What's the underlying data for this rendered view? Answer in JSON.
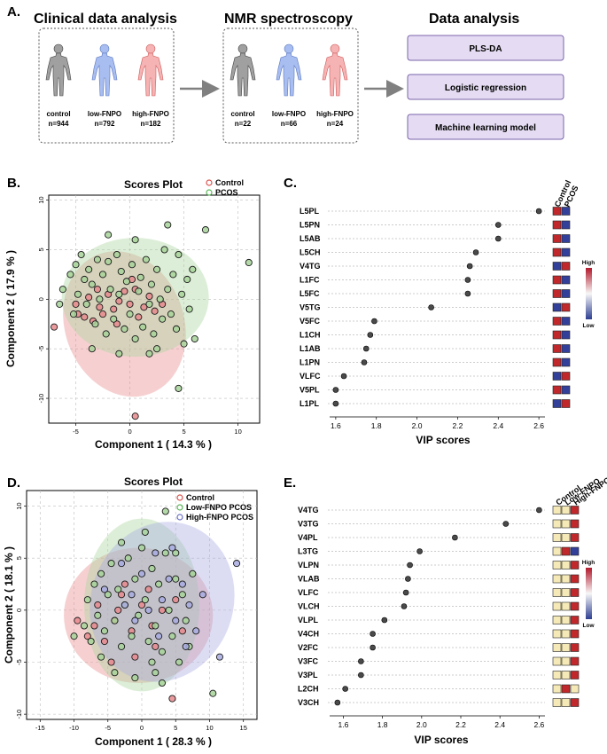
{
  "panel_a": {
    "letter": "A.",
    "clinical": {
      "title": "Clinical data analysis",
      "groups": [
        {
          "name": "control",
          "n": "n=944",
          "color": "#9a9a9a"
        },
        {
          "name": "low-FNPO",
          "n": "n=792",
          "color": "#8ea6e0"
        },
        {
          "name": "high-FNPO",
          "n": "n=182",
          "color": "#f2a2a2"
        }
      ]
    },
    "nmr": {
      "title": "NMR spectroscopy",
      "groups": [
        {
          "name": "control",
          "n": "n=22",
          "color": "#9a9a9a"
        },
        {
          "name": "low-FNPO",
          "n": "n=66",
          "color": "#8ea6e0"
        },
        {
          "name": "high-FNPO",
          "n": "n=24",
          "color": "#f2a2a2"
        }
      ]
    },
    "analysis": {
      "title": "Data analysis",
      "steps": [
        "PLS-DA",
        "Logistic regression",
        "Machine learning model"
      ],
      "box_color": "#e5dcf3",
      "border_color": "#7a63a8"
    }
  },
  "chart_data": [
    {
      "panel": "B.",
      "type": "scatter",
      "title": "Scores Plot",
      "xlabel": "Component 1 ( 14.3 % )",
      "ylabel": "Component 2 ( 17.9 % )",
      "xlim": [
        -7.5,
        12
      ],
      "ylim": [
        -12.5,
        10.5
      ],
      "xticks": [
        -5,
        0,
        5,
        10
      ],
      "yticks": [
        -10,
        -5,
        0,
        5,
        10
      ],
      "grid": true,
      "legend_position": "top-right",
      "series": [
        {
          "name": "Control",
          "color": "#e8898d",
          "marker": "#d9534f",
          "ellipse": {
            "cx": -0.5,
            "cy": -2.5,
            "rx": 5.5,
            "ry": 7.5,
            "angle": 20
          },
          "points": [
            [
              -7.0,
              -2.8
            ],
            [
              -5.0,
              -0.5
            ],
            [
              -4.8,
              -1.5
            ],
            [
              -4.2,
              -1.8
            ],
            [
              -3.8,
              0.2
            ],
            [
              -3.4,
              -2.2
            ],
            [
              -2.8,
              -0.8
            ],
            [
              -2.5,
              -1.5
            ],
            [
              -2.0,
              0.5
            ],
            [
              -1.5,
              -1.0
            ],
            [
              -1.0,
              -0.2
            ],
            [
              -0.5,
              0.8
            ],
            [
              0.0,
              -0.5
            ],
            [
              0.5,
              1.0
            ],
            [
              0.8,
              -1.8
            ],
            [
              1.3,
              -0.8
            ],
            [
              1.8,
              0.3
            ],
            [
              2.3,
              -1.2
            ],
            [
              -1.2,
              -2.5
            ],
            [
              0.2,
              2.0
            ],
            [
              -3.0,
              1.0
            ],
            [
              3.0,
              -0.5
            ],
            [
              0.5,
              -11.8
            ]
          ]
        },
        {
          "name": "PCOS",
          "color": "#a8d49a",
          "marker": "#5cb85c",
          "ellipse": {
            "cx": 0.5,
            "cy": 0.2,
            "rx": 6.8,
            "ry": 6.0,
            "angle": 0
          },
          "points": [
            [
              -6.5,
              -0.5
            ],
            [
              -6.2,
              1.0
            ],
            [
              -5.5,
              2.5
            ],
            [
              -5.2,
              -1.5
            ],
            [
              -5.0,
              3.5
            ],
            [
              -4.8,
              0.5
            ],
            [
              -4.5,
              4.5
            ],
            [
              -4.2,
              2.0
            ],
            [
              -4.0,
              -0.5
            ],
            [
              -3.8,
              3.0
            ],
            [
              -3.5,
              1.5
            ],
            [
              -3.2,
              -2.5
            ],
            [
              -3.0,
              4.0
            ],
            [
              -2.8,
              0.0
            ],
            [
              -2.5,
              2.5
            ],
            [
              -2.2,
              -3.5
            ],
            [
              -2.0,
              3.8
            ],
            [
              -1.8,
              1.0
            ],
            [
              -1.5,
              -2.0
            ],
            [
              -1.2,
              4.5
            ],
            [
              -1.0,
              0.5
            ],
            [
              -0.8,
              2.8
            ],
            [
              -0.5,
              -3.0
            ],
            [
              -0.3,
              1.8
            ],
            [
              0.0,
              -1.5
            ],
            [
              0.2,
              3.5
            ],
            [
              0.5,
              -4.0
            ],
            [
              0.8,
              0.8
            ],
            [
              1.0,
              2.2
            ],
            [
              1.2,
              -2.8
            ],
            [
              1.5,
              4.0
            ],
            [
              1.8,
              -0.5
            ],
            [
              2.0,
              1.5
            ],
            [
              2.2,
              -3.5
            ],
            [
              2.5,
              3.0
            ],
            [
              2.8,
              0.0
            ],
            [
              3.0,
              -2.0
            ],
            [
              3.2,
              5.0
            ],
            [
              3.5,
              1.0
            ],
            [
              3.8,
              -1.5
            ],
            [
              4.0,
              2.5
            ],
            [
              4.3,
              -3.0
            ],
            [
              4.5,
              4.5
            ],
            [
              4.8,
              0.5
            ],
            [
              5.0,
              -4.5
            ],
            [
              5.3,
              2.0
            ],
            [
              5.5,
              -1.0
            ],
            [
              5.8,
              3.0
            ],
            [
              6.0,
              -4.0
            ],
            [
              3.5,
              7.5
            ],
            [
              7.0,
              7.0
            ],
            [
              11.0,
              3.7
            ],
            [
              4.5,
              -9.0
            ],
            [
              -3.5,
              -5.0
            ],
            [
              -1.0,
              -5.5
            ],
            [
              2.5,
              -5.0
            ],
            [
              0.5,
              6.0
            ],
            [
              -2.0,
              6.5
            ],
            [
              1.8,
              -5.5
            ]
          ]
        }
      ]
    },
    {
      "panel": "C.",
      "type": "scatter",
      "xlabel": "VIP scores",
      "xlim": [
        1.57,
        2.63
      ],
      "xticks": [
        1.6,
        1.8,
        2.0,
        2.2,
        2.4,
        2.6
      ],
      "features": [
        "L5PL",
        "L5PN",
        "L5AB",
        "L5CH",
        "V4TG",
        "L1FC",
        "L5FC",
        "V5TG",
        "V5FC",
        "L1CH",
        "L1AB",
        "L1PN",
        "VLFC",
        "V5PL",
        "L1PL"
      ],
      "values": [
        2.6,
        2.4,
        2.4,
        2.29,
        2.26,
        2.25,
        2.25,
        2.07,
        1.79,
        1.77,
        1.75,
        1.74,
        1.64,
        1.6,
        1.6
      ],
      "heatmap": {
        "columns": [
          "Control",
          "PCOS"
        ],
        "levels": [
          [
            "high",
            "low"
          ],
          [
            "high",
            "low"
          ],
          [
            "high",
            "low"
          ],
          [
            "high",
            "low"
          ],
          [
            "low",
            "high"
          ],
          [
            "high",
            "low"
          ],
          [
            "high",
            "low"
          ],
          [
            "low",
            "high"
          ],
          [
            "high",
            "low"
          ],
          [
            "high",
            "low"
          ],
          [
            "high",
            "low"
          ],
          [
            "high",
            "low"
          ],
          [
            "low",
            "high"
          ],
          [
            "high",
            "low"
          ],
          [
            "low",
            "high"
          ]
        ],
        "colorbar": {
          "high": "High",
          "low": "Low",
          "high_color": "#b2182b",
          "mid_color": "#f7f7f7",
          "low_color": "#2c3e91"
        }
      }
    },
    {
      "panel": "D.",
      "type": "scatter",
      "title": "Scores Plot",
      "xlabel": "Component 1 ( 28.3 % )",
      "ylabel": "Component 2 ( 18.1 % )",
      "xlim": [
        -17,
        17
      ],
      "ylim": [
        -10.5,
        11.5
      ],
      "xticks": [
        -15,
        -10,
        -5,
        0,
        5,
        10,
        15
      ],
      "yticks": [
        -10,
        -5,
        0,
        5,
        10
      ],
      "grid": true,
      "legend_position": "top-right",
      "series": [
        {
          "name": "Control",
          "color": "#e8898d",
          "marker": "#d9534f",
          "ellipse": {
            "cx": -0.5,
            "cy": -0.5,
            "rx": 11.0,
            "ry": 6.5,
            "angle": 0
          },
          "points": [
            [
              -9.5,
              -1.0
            ],
            [
              -8.0,
              -2.5
            ],
            [
              -6.5,
              0.5
            ],
            [
              -5.5,
              -3.0
            ],
            [
              -4.0,
              -1.0
            ],
            [
              -3.0,
              1.5
            ],
            [
              -1.5,
              -2.0
            ],
            [
              0.0,
              0.5
            ],
            [
              1.5,
              -1.5
            ],
            [
              3.0,
              0.0
            ],
            [
              -2.5,
              2.5
            ],
            [
              4.5,
              -8.5
            ],
            [
              2.0,
              -3.5
            ],
            [
              -7.0,
              -1.5
            ],
            [
              5.0,
              1.0
            ],
            [
              -1.0,
              -4.5
            ],
            [
              1.0,
              2.0
            ],
            [
              -4.5,
              -5.0
            ],
            [
              6.0,
              -2.0
            ],
            [
              -3.5,
              0.0
            ]
          ]
        },
        {
          "name": "Low-FNPO PCOS",
          "color": "#a8d49a",
          "marker": "#5cb85c",
          "ellipse": {
            "cx": 0.0,
            "cy": 0.5,
            "rx": 8.5,
            "ry": 8.3,
            "angle": 0
          },
          "points": [
            [
              -10.0,
              -2.5
            ],
            [
              -8.5,
              -1.5
            ],
            [
              -8.0,
              1.0
            ],
            [
              -7.5,
              -3.0
            ],
            [
              -7.0,
              2.5
            ],
            [
              -6.5,
              -0.5
            ],
            [
              -6.0,
              3.5
            ],
            [
              -5.5,
              -2.0
            ],
            [
              -5.0,
              1.5
            ],
            [
              -4.5,
              4.5
            ],
            [
              -4.0,
              -1.0
            ],
            [
              -3.5,
              2.0
            ],
            [
              -3.0,
              -3.5
            ],
            [
              -2.5,
              0.5
            ],
            [
              -2.0,
              5.0
            ],
            [
              -1.5,
              -2.5
            ],
            [
              -1.0,
              3.0
            ],
            [
              -0.5,
              -0.5
            ],
            [
              0.0,
              6.0
            ],
            [
              0.5,
              1.0
            ],
            [
              1.0,
              -3.0
            ],
            [
              1.5,
              4.0
            ],
            [
              2.0,
              -1.5
            ],
            [
              2.5,
              2.5
            ],
            [
              3.0,
              -4.0
            ],
            [
              3.5,
              5.5
            ],
            [
              4.0,
              0.0
            ],
            [
              4.5,
              -2.5
            ],
            [
              5.0,
              3.0
            ],
            [
              5.5,
              -5.0
            ],
            [
              6.0,
              1.5
            ],
            [
              6.5,
              -1.0
            ],
            [
              7.0,
              -3.5
            ],
            [
              3.5,
              9.5
            ],
            [
              -4.0,
              -6.0
            ],
            [
              -1.0,
              -6.5
            ],
            [
              2.0,
              -6.0
            ],
            [
              3.0,
              -7.0
            ],
            [
              -6.0,
              -4.5
            ],
            [
              0.5,
              7.5
            ],
            [
              7.5,
              3.5
            ],
            [
              10.5,
              -8.0
            ],
            [
              5.0,
              5.5
            ],
            [
              -3.0,
              6.5
            ],
            [
              1.5,
              -5.0
            ]
          ]
        },
        {
          "name": "High-FNPO PCOS",
          "color": "#a8abe0",
          "marker": "#6c71c4",
          "ellipse": {
            "cx": 3.0,
            "cy": 0.8,
            "rx": 10.5,
            "ry": 7.8,
            "angle": -20
          },
          "points": [
            [
              -5.5,
              2.0
            ],
            [
              -3.0,
              4.5
            ],
            [
              -1.5,
              1.5
            ],
            [
              0.0,
              3.5
            ],
            [
              1.0,
              0.0
            ],
            [
              2.0,
              5.5
            ],
            [
              3.0,
              1.0
            ],
            [
              4.0,
              3.0
            ],
            [
              5.0,
              -1.0
            ],
            [
              6.0,
              2.5
            ],
            [
              7.0,
              0.5
            ],
            [
              8.0,
              -2.0
            ],
            [
              14.0,
              4.5
            ],
            [
              11.5,
              -4.5
            ],
            [
              -1.0,
              -1.0
            ],
            [
              2.5,
              -2.5
            ],
            [
              9.0,
              1.5
            ],
            [
              -2.5,
              0.5
            ],
            [
              4.5,
              6.0
            ],
            [
              6.5,
              -3.5
            ]
          ]
        }
      ]
    },
    {
      "panel": "E.",
      "type": "scatter",
      "xlabel": "VIP scores",
      "xlim": [
        1.53,
        2.63
      ],
      "xticks": [
        1.6,
        1.8,
        2.0,
        2.2,
        2.4,
        2.6
      ],
      "features": [
        "V4TG",
        "V3TG",
        "V4PL",
        "L3TG",
        "VLPN",
        "VLAB",
        "VLFC",
        "VLCH",
        "VLPL",
        "V4CH",
        "V2FC",
        "V3FC",
        "V3PL",
        "L2CH",
        "V3CH"
      ],
      "values": [
        2.6,
        2.43,
        2.17,
        1.99,
        1.94,
        1.93,
        1.92,
        1.91,
        1.81,
        1.75,
        1.75,
        1.69,
        1.69,
        1.61,
        1.57
      ],
      "heatmap": {
        "columns": [
          "Control",
          "Low-FNPO",
          "High-FNPO"
        ],
        "levels": [
          [
            "light",
            "light",
            "high"
          ],
          [
            "light",
            "light",
            "high"
          ],
          [
            "light",
            "light",
            "high"
          ],
          [
            "light",
            "high",
            "low"
          ],
          [
            "light",
            "light",
            "high"
          ],
          [
            "light",
            "light",
            "high"
          ],
          [
            "light",
            "light",
            "high"
          ],
          [
            "light",
            "light",
            "high"
          ],
          [
            "light",
            "light",
            "high"
          ],
          [
            "light",
            "light",
            "high"
          ],
          [
            "light",
            "light",
            "high"
          ],
          [
            "light",
            "light",
            "high"
          ],
          [
            "light",
            "light",
            "high"
          ],
          [
            "light",
            "high",
            "light"
          ],
          [
            "light",
            "light",
            "high"
          ]
        ],
        "colorbar": {
          "high": "High",
          "low": "Low",
          "high_color": "#b2182b",
          "mid_color": "#f7f7f7",
          "low_color": "#2c3e91"
        }
      }
    }
  ]
}
